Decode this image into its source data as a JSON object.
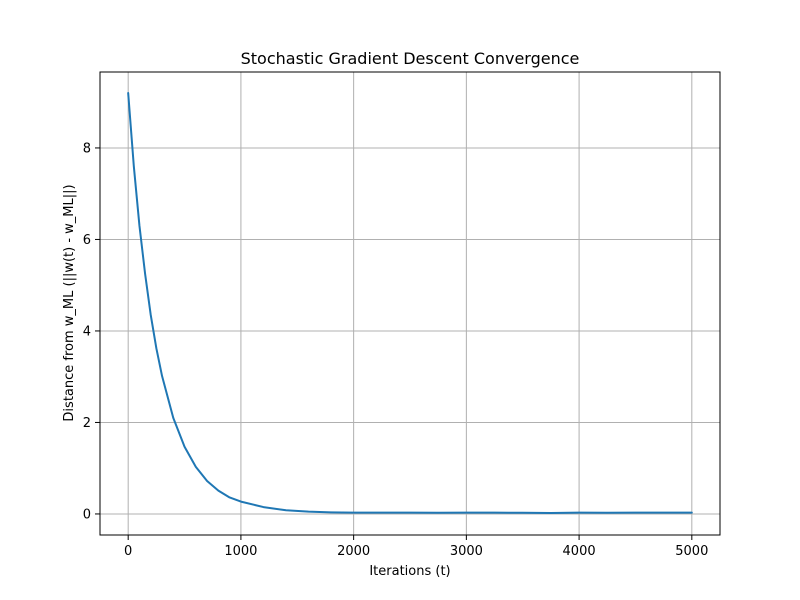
{
  "chart_data": {
    "type": "line",
    "title": "Stochastic Gradient Descent Convergence",
    "xlabel": "Iterations (t)",
    "ylabel": "Distance from w_ML (||w(t) - w_ML||)",
    "xlim": [
      -250,
      5250
    ],
    "ylim": [
      -0.46,
      9.66
    ],
    "xticks": [
      0,
      1000,
      2000,
      3000,
      4000,
      5000
    ],
    "xtick_labels": [
      "0",
      "1000",
      "2000",
      "3000",
      "4000",
      "5000"
    ],
    "yticks": [
      0,
      2,
      4,
      6,
      8
    ],
    "ytick_labels": [
      "0",
      "2",
      "4",
      "6",
      "8"
    ],
    "grid": true,
    "legend": "none",
    "series": [
      {
        "color": "#1f77b4",
        "x": [
          0,
          50,
          100,
          150,
          200,
          250,
          300,
          400,
          500,
          600,
          700,
          800,
          900,
          1000,
          1200,
          1400,
          1600,
          1800,
          2000,
          2250,
          2500,
          2750,
          3000,
          3250,
          3500,
          3750,
          4000,
          4250,
          4500,
          4750,
          5000
        ],
        "y": [
          9.2,
          7.6,
          6.3,
          5.25,
          4.35,
          3.62,
          3.02,
          2.1,
          1.47,
          1.03,
          0.72,
          0.51,
          0.36,
          0.27,
          0.15,
          0.08,
          0.05,
          0.035,
          0.03,
          0.03,
          0.028,
          0.025,
          0.03,
          0.028,
          0.025,
          0.022,
          0.028,
          0.025,
          0.03,
          0.028,
          0.03
        ]
      }
    ]
  }
}
